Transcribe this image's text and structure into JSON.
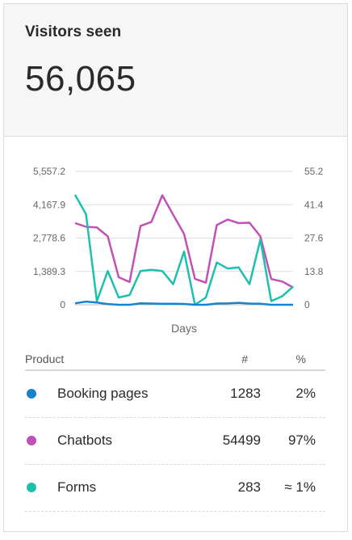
{
  "header": {
    "title": "Visitors seen",
    "total": "56,065"
  },
  "chart_data": {
    "type": "line",
    "xlabel": "Days",
    "left_axis": {
      "ticks": [
        "0",
        "1,389.3",
        "2,778.6",
        "4,167.9",
        "5,557.2"
      ],
      "max": 5557.2
    },
    "right_axis": {
      "ticks": [
        "0",
        "13.8",
        "27.6",
        "41.4",
        "55.2"
      ],
      "max": 55.2
    },
    "grid": true,
    "series": [
      {
        "color": "#c151b6",
        "axis": "left",
        "values": [
          3400,
          3250,
          3220,
          2850,
          1150,
          950,
          3280,
          3450,
          4560,
          3750,
          2950,
          1080,
          920,
          3320,
          3550,
          3400,
          3420,
          2850,
          1070,
          970,
          720
        ]
      },
      {
        "color": "#1fbfae",
        "axis": "right",
        "values": [
          45.5,
          37.5,
          1.5,
          14,
          3,
          4,
          14,
          14.5,
          14,
          8.5,
          22,
          0,
          3,
          17.5,
          15,
          15.5,
          8.5,
          27,
          1.5,
          3.5,
          7.5
        ]
      },
      {
        "color": "#1683d0",
        "axis": "left",
        "values": [
          60,
          130,
          90,
          30,
          0,
          0,
          60,
          50,
          45,
          40,
          35,
          0,
          0,
          50,
          60,
          80,
          50,
          40,
          0,
          0,
          0
        ]
      }
    ]
  },
  "table": {
    "headers": {
      "product": "Product",
      "count": "#",
      "pct": "%"
    },
    "rows": [
      {
        "name": "Booking pages",
        "count": "1283",
        "pct": "2%",
        "color": "#1683d0"
      },
      {
        "name": "Chatbots",
        "count": "54499",
        "pct": "97%",
        "color": "#c151b6"
      },
      {
        "name": "Forms",
        "count": "283",
        "pct": "≈ 1%",
        "color": "#1fbfae"
      }
    ]
  }
}
